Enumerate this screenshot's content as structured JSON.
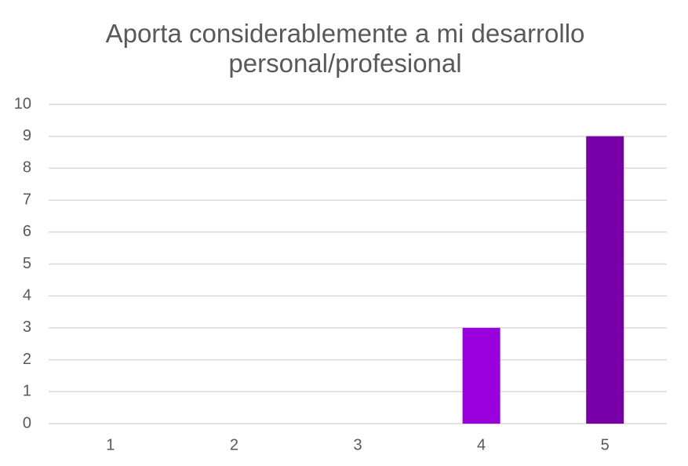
{
  "chart_data": {
    "type": "bar",
    "title": "Aporta considerablemente a mi desarrollo personal/profesional",
    "categories": [
      "1",
      "2",
      "3",
      "4",
      "5"
    ],
    "values": [
      0,
      0,
      0,
      3,
      9
    ],
    "colors": [
      "#c580ef",
      "#b44de8",
      "#a820e2",
      "#9900dd",
      "#7700a8"
    ],
    "ylim": [
      0,
      10
    ],
    "yticks": [
      0,
      1,
      2,
      3,
      4,
      5,
      6,
      7,
      8,
      9,
      10
    ],
    "grid": true
  }
}
